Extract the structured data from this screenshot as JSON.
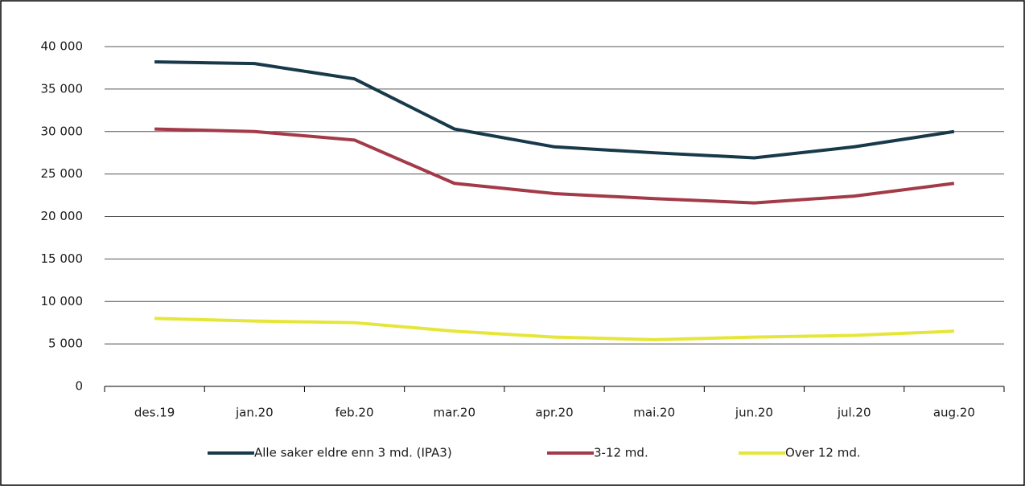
{
  "chart_data": {
    "type": "line",
    "categories": [
      "des.19",
      "jan.20",
      "feb.20",
      "mar.20",
      "apr.20",
      "mai.20",
      "jun.20",
      "jul.20",
      "aug.20"
    ],
    "series": [
      {
        "name": "Alle saker eldre enn 3 md. (IPA3)",
        "color": "#17394a",
        "values": [
          38200,
          38000,
          36200,
          30300,
          28200,
          27500,
          26900,
          28200,
          30000
        ]
      },
      {
        "name": "3-12 md.",
        "color": "#a33a48",
        "values": [
          30300,
          30000,
          29000,
          23900,
          22700,
          22100,
          21600,
          22400,
          23900
        ]
      },
      {
        "name": "Over 12 md.",
        "color": "#e6e63a",
        "values": [
          8000,
          7700,
          7500,
          6500,
          5800,
          5500,
          5800,
          6000,
          6500
        ]
      }
    ],
    "ylim": [
      0,
      40000
    ],
    "yticks": [
      0,
      {
        "value": 5000,
        "label": "5 000"
      },
      {
        "value": 10000,
        "label": "10 000"
      },
      {
        "value": 15000,
        "label": "15 000"
      },
      {
        "value": 20000,
        "label": "20 000"
      },
      {
        "value": 25000,
        "label": "25 000"
      },
      {
        "value": 30000,
        "label": "30 000"
      },
      {
        "value": 35000,
        "label": "35 000"
      },
      {
        "value": 40000,
        "label": "40 000"
      }
    ],
    "grid": true,
    "legend": "bottom"
  }
}
